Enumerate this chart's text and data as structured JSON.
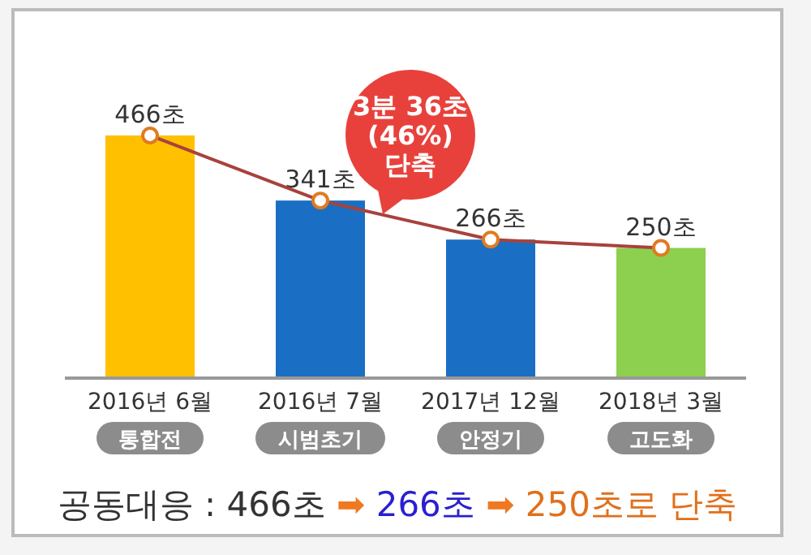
{
  "chart_data": {
    "type": "bar",
    "categories": [
      "2016년 6월",
      "2016년 7월",
      "2017년 12월",
      "2018년 3월"
    ],
    "series": [
      {
        "colors": [
          "#ffc000",
          "#1a6fc4",
          "#1a6fc4",
          "#8dcf4f"
        ],
        "values": [
          466,
          341,
          266,
          250
        ],
        "value_labels": [
          "466초",
          "341초",
          "266초",
          "250초"
        ]
      },
      {
        "type": "line",
        "color": "#a8423c",
        "values": [
          466,
          341,
          266,
          250
        ]
      }
    ],
    "marker": "circle",
    "annotations": [
      "통합전",
      "시범초기",
      "안정기",
      "고도화",
      "3분 36초\n(46%)\n단축",
      "공동대응 : 466초 ➡ 266초 ➡ 250초로 단축"
    ]
  }
}
